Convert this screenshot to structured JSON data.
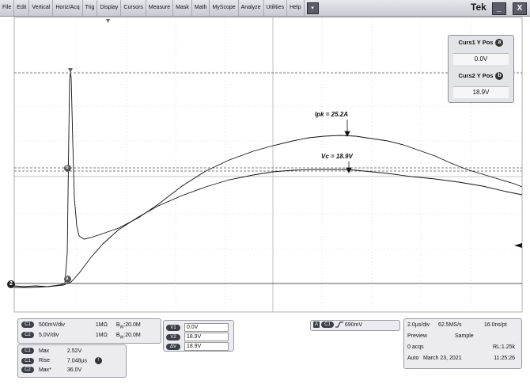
{
  "menu": {
    "items": [
      "File",
      "Edit",
      "Vertical",
      "Horiz/Acq",
      "Trig",
      "Display",
      "Cursors",
      "Measure",
      "Mask",
      "Math",
      "MyScope",
      "Analyze",
      "Utilities",
      "Help"
    ],
    "dropdown_icon": "chevron-down-icon",
    "brand": "Tek",
    "minimize_label": "_",
    "close_label": "X"
  },
  "cursors": {
    "curs1_label": "Curs1 Y Pos",
    "curs1_badge": "a",
    "curs1_value": "0.0V",
    "curs2_label": "Curs2 Y Pos",
    "curs2_badge": "b",
    "curs2_value": "18.9V"
  },
  "annotations": {
    "ipk": "Ipk = 25.2A",
    "vc": "Vc = 18.9V"
  },
  "markers": {
    "cursor_a": "a",
    "cursor_b": "b",
    "ground_ref": "2"
  },
  "channels": [
    {
      "badge": "C1",
      "scale": "500mV/div",
      "impedance": "1MΩ",
      "bw": "20.0M"
    },
    {
      "badge": "C2",
      "scale": "5.0V/div",
      "impedance": "1MΩ",
      "bw": "20.0M"
    }
  ],
  "bw_prefix": "B",
  "bw_sub": "W",
  "measurements": [
    {
      "badge": "C1",
      "name": "Max",
      "value": "2.52V"
    },
    {
      "badge": "C1",
      "name": "Rise",
      "value": "7.048µs"
    },
    {
      "badge": "C2",
      "name": "Max*",
      "value": "36.0V"
    }
  ],
  "measure_warning_icon": "warning-icon",
  "cursor_values": [
    {
      "badge": "V1",
      "value": "0.0V"
    },
    {
      "badge": "V2",
      "value": "18.9V"
    },
    {
      "badge": "ΔV",
      "value": "18.9V"
    }
  ],
  "trigger": {
    "mode_badge": "A",
    "channel": "C1",
    "slope_icon": "rising-edge-icon",
    "level": "690mV"
  },
  "acquisition": {
    "timebase": "2.0µs/div",
    "sample_rate": "62.5MS/s",
    "resolution": "16.0ns/pt",
    "preview": "Preview",
    "sample": "Sample",
    "acqs": "0 acqs",
    "record_length": "RL:1.25k",
    "trigger_mode": "Auto",
    "date": "March 23, 2021",
    "time": "11:25:26"
  }
}
